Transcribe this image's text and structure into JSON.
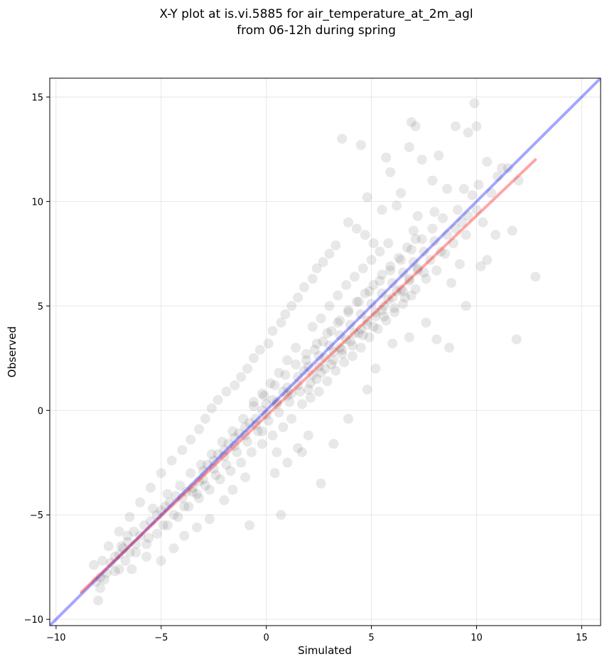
{
  "chart_data": {
    "type": "scatter",
    "title": "X-Y plot at is.vi.5885 for air_temperature_at_2m_agl",
    "subtitle": "from 06-12h during spring",
    "xlabel": "Simulated",
    "ylabel": "Observed",
    "xlim": [
      -10.3,
      15.9
    ],
    "ylim": [
      -10.3,
      15.9
    ],
    "xticks": [
      -10,
      -5,
      0,
      5,
      10,
      15
    ],
    "yticks": [
      -10,
      -5,
      0,
      5,
      10,
      15
    ],
    "xtick_labels": [
      "−10",
      "−5",
      "0",
      "5",
      "10",
      "15"
    ],
    "ytick_labels": [
      "−10",
      "−5",
      "0",
      "5",
      "10",
      "15"
    ],
    "grid": true,
    "point_color": "#000000",
    "point_opacity": 0.09,
    "reference_lines": [
      {
        "kind": "one-to-one",
        "color": "#0000ff",
        "opacity": 0.35,
        "x": [
          -10.3,
          15.9
        ],
        "y": [
          -10.3,
          15.9
        ]
      },
      {
        "kind": "regression",
        "color": "#ff0000",
        "opacity": 0.35,
        "x": [
          -8.8,
          12.8
        ],
        "y": [
          -8.7,
          12.0
        ]
      }
    ],
    "points": [
      [
        -8.1,
        -8.2
      ],
      [
        -7.9,
        -8.0
      ],
      [
        -8.0,
        -9.1
      ],
      [
        -7.6,
        -7.8
      ],
      [
        -7.4,
        -7.3
      ],
      [
        -7.8,
        -7.2
      ],
      [
        -7.2,
        -7.0
      ],
      [
        -7.0,
        -6.9
      ],
      [
        -6.8,
        -6.6
      ],
      [
        -6.6,
        -6.3
      ],
      [
        -6.5,
        -6.8
      ],
      [
        -6.2,
        -6.4
      ],
      [
        -6.0,
        -6.0
      ],
      [
        -5.8,
        -5.5
      ],
      [
        -5.5,
        -5.3
      ],
      [
        -5.2,
        -5.0
      ],
      [
        -5.0,
        -4.8
      ],
      [
        -4.8,
        -4.6
      ],
      [
        -4.6,
        -4.4
      ],
      [
        -4.3,
        -4.1
      ],
      [
        -4.0,
        -4.2
      ],
      [
        -3.8,
        -3.9
      ],
      [
        -3.5,
        -3.7
      ],
      [
        -3.2,
        -3.4
      ],
      [
        -3.0,
        -2.9
      ],
      [
        -2.8,
        -2.6
      ],
      [
        -2.5,
        -2.4
      ],
      [
        -2.3,
        -2.1
      ],
      [
        -2.0,
        -1.9
      ],
      [
        -1.8,
        -1.6
      ],
      [
        -1.5,
        -1.3
      ],
      [
        -1.3,
        -1.1
      ],
      [
        -1.0,
        -0.8
      ],
      [
        -0.8,
        -0.6
      ],
      [
        -0.5,
        -0.4
      ],
      [
        -0.2,
        0.0
      ],
      [
        0.0,
        0.3
      ],
      [
        0.3,
        0.5
      ],
      [
        0.5,
        0.4
      ],
      [
        0.8,
        0.9
      ],
      [
        1.0,
        1.1
      ],
      [
        1.2,
        0.8
      ],
      [
        1.5,
        1.6
      ],
      [
        1.8,
        1.9
      ],
      [
        2.0,
        2.1
      ],
      [
        2.2,
        1.7
      ],
      [
        2.5,
        2.6
      ],
      [
        2.8,
        2.5
      ],
      [
        3.0,
        3.1
      ],
      [
        3.2,
        2.8
      ],
      [
        3.5,
        3.6
      ],
      [
        3.8,
        3.4
      ],
      [
        4.0,
        4.1
      ],
      [
        4.2,
        3.7
      ],
      [
        4.5,
        4.6
      ],
      [
        4.8,
        4.3
      ],
      [
        5.0,
        5.1
      ],
      [
        5.2,
        4.7
      ],
      [
        5.5,
        5.6
      ],
      [
        5.8,
        5.3
      ],
      [
        6.0,
        6.1
      ],
      [
        6.2,
        5.7
      ],
      [
        6.5,
        6.6
      ],
      [
        6.8,
        6.2
      ],
      [
        7.0,
        7.1
      ],
      [
        7.2,
        6.8
      ],
      [
        7.5,
        7.6
      ],
      [
        7.8,
        7.2
      ],
      [
        8.0,
        8.1
      ],
      [
        8.3,
        7.6
      ],
      [
        8.6,
        8.4
      ],
      [
        9.0,
        8.7
      ],
      [
        9.3,
        9.0
      ],
      [
        9.6,
        9.3
      ],
      [
        10.0,
        9.6
      ],
      [
        10.3,
        9.0
      ],
      [
        10.7,
        10.4
      ],
      [
        11.0,
        11.2
      ],
      [
        11.5,
        11.6
      ],
      [
        12.0,
        11.0
      ],
      [
        -7.9,
        -8.5
      ],
      [
        -7.0,
        -7.6
      ],
      [
        -6.6,
        -6.0
      ],
      [
        -6.9,
        -6.5
      ],
      [
        -6.3,
        -5.8
      ],
      [
        -5.6,
        -6.1
      ],
      [
        -5.4,
        -4.7
      ],
      [
        -4.9,
        -5.5
      ],
      [
        -4.7,
        -4.0
      ],
      [
        -4.4,
        -5.0
      ],
      [
        -4.1,
        -3.6
      ],
      [
        -3.9,
        -4.6
      ],
      [
        -3.6,
        -3.0
      ],
      [
        -3.3,
        -4.0
      ],
      [
        -3.1,
        -2.6
      ],
      [
        -2.9,
        -3.6
      ],
      [
        -2.6,
        -2.1
      ],
      [
        -2.4,
        -3.1
      ],
      [
        -2.1,
        -1.5
      ],
      [
        -1.9,
        -2.6
      ],
      [
        -1.6,
        -1.0
      ],
      [
        -1.4,
        -2.0
      ],
      [
        -1.1,
        -0.4
      ],
      [
        -0.9,
        -1.5
      ],
      [
        -0.6,
        0.2
      ],
      [
        -0.4,
        -1.0
      ],
      [
        -0.1,
        0.7
      ],
      [
        0.1,
        -0.5
      ],
      [
        0.4,
        1.2
      ],
      [
        0.6,
        -0.1
      ],
      [
        0.9,
        1.7
      ],
      [
        1.1,
        0.4
      ],
      [
        1.4,
        2.2
      ],
      [
        1.6,
        0.9
      ],
      [
        1.9,
        2.7
      ],
      [
        2.1,
        1.3
      ],
      [
        2.4,
        3.2
      ],
      [
        2.6,
        1.8
      ],
      [
        2.9,
        3.7
      ],
      [
        3.1,
        2.2
      ],
      [
        3.4,
        4.2
      ],
      [
        3.6,
        2.7
      ],
      [
        3.9,
        4.7
      ],
      [
        4.1,
        3.1
      ],
      [
        4.4,
        5.2
      ],
      [
        4.6,
        3.6
      ],
      [
        4.9,
        5.7
      ],
      [
        5.1,
        4.0
      ],
      [
        5.4,
        6.2
      ],
      [
        5.6,
        4.5
      ],
      [
        5.9,
        6.7
      ],
      [
        6.1,
        4.9
      ],
      [
        6.4,
        7.2
      ],
      [
        6.6,
        5.4
      ],
      [
        6.9,
        7.7
      ],
      [
        7.1,
        5.8
      ],
      [
        7.4,
        8.2
      ],
      [
        7.6,
        6.3
      ],
      [
        7.9,
        8.7
      ],
      [
        8.1,
        6.7
      ],
      [
        8.4,
        9.2
      ],
      [
        8.8,
        6.1
      ],
      [
        9.1,
        9.6
      ],
      [
        9.5,
        5.0
      ],
      [
        9.8,
        10.3
      ],
      [
        10.2,
        6.9
      ],
      [
        10.5,
        7.2
      ],
      [
        10.9,
        8.4
      ],
      [
        11.7,
        8.6
      ],
      [
        11.9,
        3.4
      ],
      [
        12.8,
        6.4
      ],
      [
        8.7,
        3.0
      ],
      [
        8.1,
        3.4
      ],
      [
        7.6,
        4.2
      ],
      [
        6.8,
        3.5
      ],
      [
        6.0,
        3.2
      ],
      [
        5.2,
        2.0
      ],
      [
        4.8,
        1.0
      ],
      [
        3.9,
        -0.4
      ],
      [
        3.2,
        -1.6
      ],
      [
        2.6,
        -3.5
      ],
      [
        0.7,
        -5.0
      ],
      [
        -0.8,
        -5.5
      ],
      [
        0.4,
        -3.0
      ],
      [
        1.0,
        -2.5
      ],
      [
        1.7,
        -2.0
      ],
      [
        2.0,
        -1.2
      ],
      [
        1.5,
        -1.8
      ],
      [
        0.5,
        -2.0
      ],
      [
        -0.2,
        -1.0
      ],
      [
        3.6,
        13.0
      ],
      [
        4.5,
        12.7
      ],
      [
        5.7,
        12.1
      ],
      [
        6.8,
        12.6
      ],
      [
        7.1,
        13.6
      ],
      [
        6.9,
        13.8
      ],
      [
        7.4,
        12.0
      ],
      [
        8.2,
        12.2
      ],
      [
        9.0,
        13.6
      ],
      [
        9.6,
        13.3
      ],
      [
        9.9,
        14.7
      ],
      [
        10.0,
        13.6
      ],
      [
        5.9,
        11.4
      ],
      [
        7.9,
        11.0
      ],
      [
        6.4,
        10.4
      ],
      [
        8.6,
        10.6
      ],
      [
        9.4,
        10.6
      ],
      [
        10.1,
        10.8
      ],
      [
        10.5,
        11.9
      ],
      [
        11.2,
        11.6
      ],
      [
        4.8,
        10.2
      ],
      [
        5.5,
        9.6
      ],
      [
        6.2,
        9.8
      ],
      [
        7.2,
        9.3
      ],
      [
        3.9,
        9.0
      ],
      [
        4.3,
        8.7
      ],
      [
        4.7,
        8.4
      ],
      [
        5.1,
        8.0
      ],
      [
        3.3,
        7.9
      ],
      [
        3.0,
        7.5
      ],
      [
        2.7,
        7.1
      ],
      [
        2.4,
        6.8
      ],
      [
        2.2,
        6.3
      ],
      [
        1.8,
        5.9
      ],
      [
        1.5,
        5.4
      ],
      [
        1.2,
        5.0
      ],
      [
        0.9,
        4.6
      ],
      [
        0.7,
        4.2
      ],
      [
        0.3,
        3.8
      ],
      [
        0.1,
        3.2
      ],
      [
        -0.3,
        2.9
      ],
      [
        -0.6,
        2.5
      ],
      [
        -0.9,
        2.0
      ],
      [
        -1.2,
        1.6
      ],
      [
        -1.5,
        1.2
      ],
      [
        -1.9,
        0.9
      ],
      [
        -2.3,
        0.5
      ],
      [
        -2.6,
        0.1
      ],
      [
        -2.9,
        -0.4
      ],
      [
        -3.2,
        -0.9
      ],
      [
        -3.6,
        -1.4
      ],
      [
        -4.0,
        -1.9
      ],
      [
        -4.5,
        -2.4
      ],
      [
        -5.0,
        -3.0
      ],
      [
        -5.5,
        -3.7
      ],
      [
        -6.0,
        -4.4
      ],
      [
        -6.5,
        -5.1
      ],
      [
        -7.0,
        -5.8
      ],
      [
        -7.5,
        -6.5
      ],
      [
        -8.2,
        -7.4
      ],
      [
        -6.4,
        -7.6
      ],
      [
        -5.7,
        -7.0
      ],
      [
        -5.0,
        -7.2
      ],
      [
        -4.4,
        -6.6
      ],
      [
        -3.9,
        -6.0
      ],
      [
        -3.3,
        -5.6
      ],
      [
        -2.7,
        -5.2
      ],
      [
        -2.0,
        -4.3
      ],
      [
        -1.6,
        -3.8
      ],
      [
        -1.0,
        -3.2
      ],
      [
        1.9,
        2.4
      ],
      [
        2.3,
        2.9
      ],
      [
        2.7,
        3.3
      ],
      [
        3.1,
        3.8
      ],
      [
        3.5,
        4.3
      ],
      [
        3.9,
        4.8
      ],
      [
        4.3,
        5.2
      ],
      [
        4.7,
        5.6
      ],
      [
        5.1,
        6.0
      ],
      [
        5.5,
        6.5
      ],
      [
        5.9,
        6.9
      ],
      [
        6.3,
        7.3
      ],
      [
        6.7,
        7.8
      ],
      [
        7.1,
        8.2
      ],
      [
        2.0,
        1.0
      ],
      [
        2.4,
        1.5
      ],
      [
        2.8,
        2.0
      ],
      [
        3.2,
        2.4
      ],
      [
        3.6,
        2.9
      ],
      [
        4.0,
        3.3
      ],
      [
        4.4,
        3.7
      ],
      [
        4.8,
        4.1
      ],
      [
        5.2,
        4.5
      ],
      [
        5.6,
        5.0
      ],
      [
        6.0,
        5.4
      ],
      [
        6.4,
        5.8
      ],
      [
        6.8,
        6.3
      ],
      [
        7.2,
        6.7
      ],
      [
        1.7,
        0.3
      ],
      [
        2.1,
        0.6
      ],
      [
        2.5,
        0.9
      ],
      [
        2.9,
        1.4
      ],
      [
        3.3,
        1.9
      ],
      [
        3.7,
        2.3
      ],
      [
        4.1,
        2.6
      ],
      [
        4.5,
        3.0
      ],
      [
        4.9,
        3.5
      ],
      [
        5.3,
        3.9
      ],
      [
        5.7,
        4.3
      ],
      [
        6.1,
        4.7
      ],
      [
        6.5,
        5.1
      ],
      [
        6.9,
        5.5
      ],
      [
        3.0,
        5.0
      ],
      [
        3.4,
        5.5
      ],
      [
        3.8,
        6.0
      ],
      [
        4.2,
        6.4
      ],
      [
        4.6,
        6.8
      ],
      [
        5.0,
        7.2
      ],
      [
        5.4,
        7.6
      ],
      [
        5.8,
        8.0
      ],
      [
        2.2,
        4.0
      ],
      [
        2.6,
        4.4
      ],
      [
        1.4,
        3.0
      ],
      [
        1.0,
        2.4
      ],
      [
        0.6,
        1.8
      ],
      [
        0.2,
        1.3
      ],
      [
        -0.2,
        0.8
      ],
      [
        -0.6,
        0.4
      ],
      [
        1.2,
        -0.4
      ],
      [
        0.8,
        -0.8
      ],
      [
        0.3,
        -1.2
      ],
      [
        -0.2,
        -1.6
      ],
      [
        -0.7,
        -2.0
      ],
      [
        -1.2,
        -2.5
      ],
      [
        -1.7,
        -2.9
      ],
      [
        -2.2,
        -3.3
      ],
      [
        -2.7,
        -3.8
      ],
      [
        -3.2,
        -4.2
      ],
      [
        -3.7,
        -4.6
      ],
      [
        -4.2,
        -5.1
      ],
      [
        -4.7,
        -5.5
      ],
      [
        -5.2,
        -5.9
      ],
      [
        -5.7,
        -6.4
      ],
      [
        -6.2,
        -6.8
      ],
      [
        -6.7,
        -7.2
      ],
      [
        -7.2,
        -7.7
      ],
      [
        -7.7,
        -8.1
      ],
      [
        -2.0,
        -2.2
      ],
      [
        -2.5,
        -2.8
      ],
      [
        -3.0,
        -3.3
      ],
      [
        -3.5,
        -3.9
      ],
      [
        -1.5,
        -1.7
      ],
      [
        -1.0,
        -1.2
      ],
      [
        -0.5,
        -0.7
      ],
      [
        0.0,
        -0.2
      ],
      [
        0.5,
        0.3
      ],
      [
        1.0,
        0.7
      ],
      [
        1.5,
        1.2
      ],
      [
        2.5,
        2.1
      ],
      [
        3.5,
        3.0
      ],
      [
        4.5,
        3.9
      ],
      [
        5.5,
        4.8
      ],
      [
        6.5,
        5.7
      ],
      [
        7.5,
        6.6
      ],
      [
        8.5,
        7.5
      ],
      [
        9.5,
        8.4
      ],
      [
        8.0,
        9.5
      ],
      [
        7.0,
        8.6
      ],
      [
        8.9,
        8.0
      ],
      [
        9.2,
        7.0
      ]
    ]
  }
}
